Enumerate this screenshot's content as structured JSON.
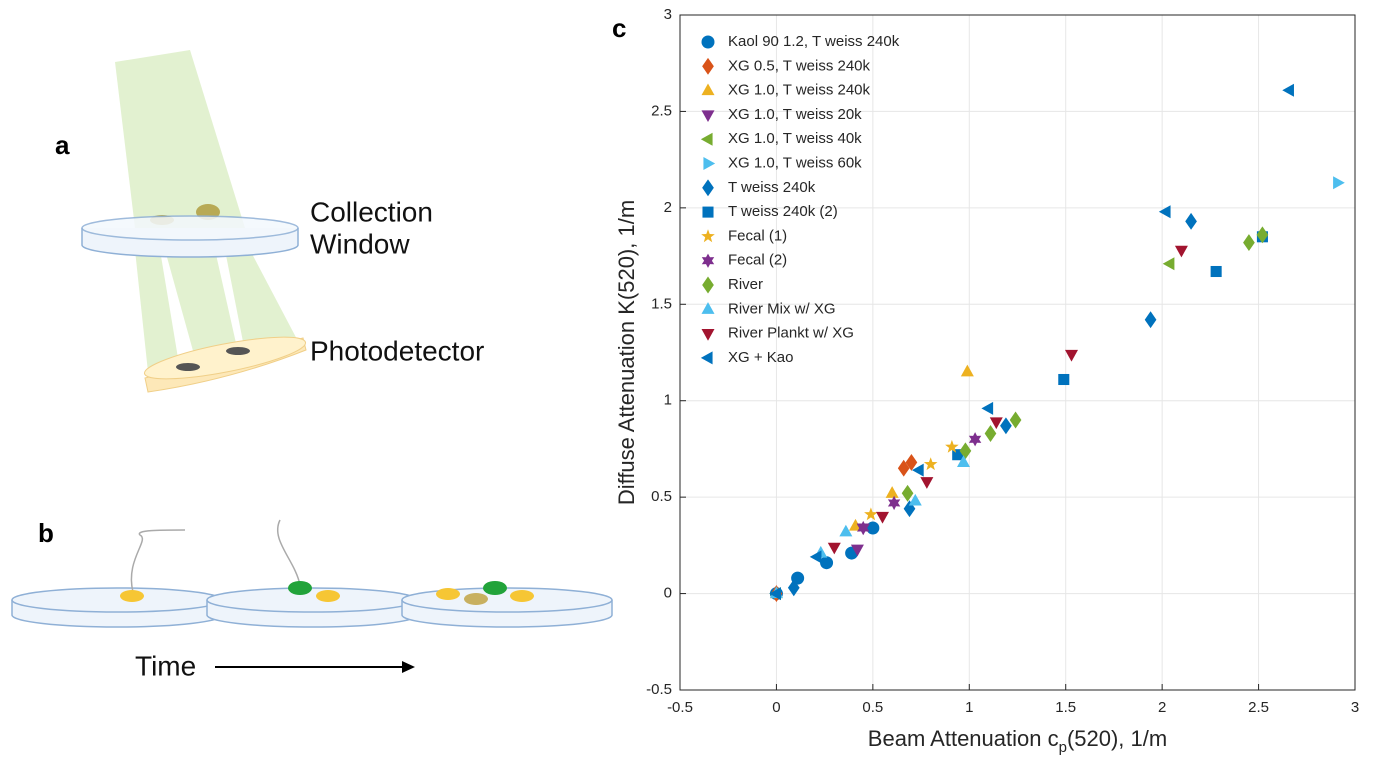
{
  "panels": [
    "a",
    "b",
    "c"
  ],
  "diagram": {
    "collection_window": [
      "Collection",
      "Window"
    ],
    "photodetector": "Photodetector",
    "time": "Time"
  },
  "chart_data": {
    "type": "scatter",
    "xlabel": [
      "Beam Attenuation c",
      "p",
      "(520), 1/m"
    ],
    "ylabel": "Diffuse Attenuation K(520), 1/m",
    "xlim": [
      -0.5,
      3
    ],
    "ylim": [
      -0.5,
      3
    ],
    "xticks": [
      -0.5,
      0,
      0.5,
      1,
      1.5,
      2,
      2.5,
      3
    ],
    "yticks": [
      -0.5,
      0,
      0.5,
      1,
      1.5,
      2,
      2.5,
      3
    ],
    "grid": true,
    "legend": "upper left",
    "series": [
      {
        "name": "Kaol 90 1.2, T weiss 240k",
        "color": "#0072bd",
        "marker": "circle",
        "x": [
          0,
          0.11,
          0.26,
          0.39,
          0.5
        ],
        "values": [
          0,
          0.08,
          0.16,
          0.21,
          0.34
        ]
      },
      {
        "name": "XG 0.5, T weiss 240k",
        "color": "#d95319",
        "marker": "diamond",
        "x": [
          0,
          0.66,
          0.7
        ],
        "values": [
          0,
          0.65,
          0.68
        ]
      },
      {
        "name": "XG 1.0, T weiss 240k",
        "color": "#edb120",
        "marker": "triangle-up",
        "x": [
          0,
          0.41,
          0.6,
          0.99
        ],
        "values": [
          0,
          0.35,
          0.52,
          1.15
        ]
      },
      {
        "name": "XG 1.0, T weiss 20k",
        "color": "#7e2f8e",
        "marker": "triangle-down",
        "x": [
          0.42,
          0.45
        ],
        "values": [
          0.23,
          0.34
        ]
      },
      {
        "name": "XG 1.0, T weiss 40k",
        "color": "#77ac30",
        "marker": "triangle-left",
        "x": [
          0,
          2.04
        ],
        "values": [
          0,
          1.71
        ]
      },
      {
        "name": "XG 1.0, T weiss 60k",
        "color": "#4dbeee",
        "marker": "triangle-right",
        "x": [
          2.91
        ],
        "values": [
          2.13
        ]
      },
      {
        "name": "T weiss 240k",
        "color": "#0072bd",
        "marker": "diamond",
        "x": [
          0.09,
          0.69,
          1.19,
          1.94,
          2.15
        ],
        "values": [
          0.03,
          0.44,
          0.87,
          1.42,
          1.93
        ]
      },
      {
        "name": "T weiss 240k (2)",
        "color": "#0072bd",
        "marker": "square",
        "x": [
          0.94,
          1.49,
          2.28,
          2.52
        ],
        "values": [
          0.72,
          1.11,
          1.67,
          1.85
        ]
      },
      {
        "name": "Fecal (1)",
        "color": "#edb120",
        "marker": "star",
        "x": [
          0.49,
          0.8,
          0.91
        ],
        "values": [
          0.41,
          0.67,
          0.76
        ]
      },
      {
        "name": "Fecal (2)",
        "color": "#7e2f8e",
        "marker": "hexagram",
        "x": [
          0.45,
          0.61,
          1.03
        ],
        "values": [
          0.34,
          0.47,
          0.8
        ]
      },
      {
        "name": "River",
        "color": "#77ac30",
        "marker": "diamond",
        "x": [
          0.68,
          0.98,
          1.11,
          1.24,
          2.45,
          2.52
        ],
        "values": [
          0.52,
          0.74,
          0.83,
          0.9,
          1.82,
          1.86
        ]
      },
      {
        "name": "River Mix w/ XG",
        "color": "#4dbeee",
        "marker": "triangle-up",
        "x": [
          0,
          0.23,
          0.36,
          0.72,
          0.97
        ],
        "values": [
          0,
          0.21,
          0.32,
          0.48,
          0.68
        ]
      },
      {
        "name": "River Plankt w/ XG",
        "color": "#a2142f",
        "marker": "triangle-down",
        "x": [
          0.3,
          0.55,
          0.78,
          1.14,
          1.53,
          2.1
        ],
        "values": [
          0.24,
          0.4,
          0.58,
          0.89,
          1.24,
          1.78
        ]
      },
      {
        "name": "XG + Kao",
        "color": "#0072bd",
        "marker": "triangle-left",
        "x": [
          0,
          0.21,
          0.74,
          1.1,
          2.02,
          2.66
        ],
        "values": [
          0,
          0.19,
          0.64,
          0.96,
          1.98,
          2.61
        ]
      }
    ]
  }
}
